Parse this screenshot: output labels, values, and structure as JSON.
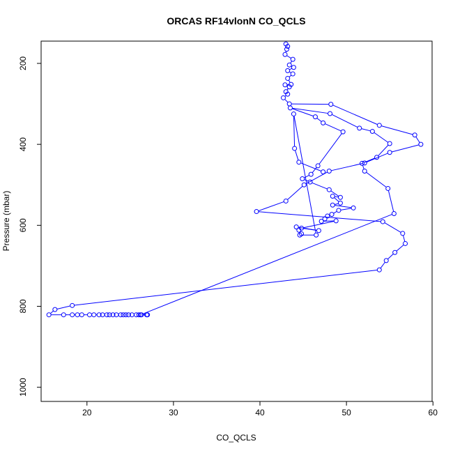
{
  "chart_data": {
    "type": "scatter",
    "title": "ORCAS RF14vlonN CO_QCLS",
    "xlabel": "CO_QCLS",
    "ylabel": "Pressure (mbar)",
    "xlim": [
      14.7,
      59.9
    ],
    "ylim": [
      1035,
      145
    ],
    "y_reversed": true,
    "grid": false,
    "line_color": "#0000ff",
    "marker": "open-circle",
    "connect_points": true,
    "x_ticks": [
      20,
      30,
      40,
      50,
      60
    ],
    "y_ticks": [
      200,
      400,
      600,
      800,
      1000
    ],
    "series": [
      {
        "points": [
          [
            43.0,
            152
          ],
          [
            43.2,
            158
          ],
          [
            43.1,
            165
          ],
          [
            42.9,
            178
          ],
          [
            43.8,
            190
          ],
          [
            43.4,
            204
          ],
          [
            43.9,
            210
          ],
          [
            43.2,
            218
          ],
          [
            43.8,
            226
          ],
          [
            43.2,
            237
          ],
          [
            43.6,
            252
          ],
          [
            42.9,
            253
          ],
          [
            43.4,
            258
          ],
          [
            43.0,
            270
          ],
          [
            43.2,
            276
          ],
          [
            42.7,
            285
          ],
          [
            43.4,
            300
          ],
          [
            48.2,
            301
          ],
          [
            53.8,
            353
          ],
          [
            57.9,
            377
          ],
          [
            58.6,
            400
          ],
          [
            55.0,
            420
          ],
          [
            52.1,
            446
          ],
          [
            48.0,
            466
          ],
          [
            45.1,
            500
          ],
          [
            43.0,
            540
          ],
          [
            39.6,
            566
          ],
          [
            54.2,
            591
          ],
          [
            56.5,
            620
          ],
          [
            56.8,
            645
          ],
          [
            55.6,
            667
          ],
          [
            54.6,
            687
          ],
          [
            53.8,
            710
          ],
          [
            18.3,
            798
          ],
          [
            16.3,
            808
          ],
          [
            15.6,
            821
          ],
          [
            17.3,
            821
          ],
          [
            18.3,
            821
          ],
          [
            18.9,
            821
          ],
          [
            19.4,
            821
          ],
          [
            20.3,
            821
          ],
          [
            20.8,
            821
          ],
          [
            21.4,
            821
          ],
          [
            21.8,
            821
          ],
          [
            22.3,
            821
          ],
          [
            22.6,
            821
          ],
          [
            23.0,
            821
          ],
          [
            23.4,
            821
          ],
          [
            23.9,
            821
          ],
          [
            24.2,
            821
          ],
          [
            24.5,
            821
          ],
          [
            24.8,
            821
          ],
          [
            25.2,
            821
          ],
          [
            25.7,
            821
          ],
          [
            26.0,
            821
          ],
          [
            26.3,
            821
          ],
          [
            26.9,
            821
          ],
          [
            27.0,
            821
          ],
          [
            26.2,
            821
          ],
          [
            55.5,
            571
          ],
          [
            54.8,
            509
          ],
          [
            52.1,
            466
          ],
          [
            51.8,
            447
          ],
          [
            53.5,
            432
          ],
          [
            55.0,
            398
          ],
          [
            53.0,
            368
          ],
          [
            51.5,
            360
          ],
          [
            48.1,
            324
          ],
          [
            43.5,
            310
          ],
          [
            46.4,
            332
          ],
          [
            47.3,
            347
          ],
          [
            49.6,
            369
          ],
          [
            46.7,
            453
          ],
          [
            45.9,
            474
          ],
          [
            44.9,
            485
          ],
          [
            45.8,
            493
          ],
          [
            48.0,
            512
          ],
          [
            49.3,
            531
          ],
          [
            48.4,
            528
          ],
          [
            49.3,
            545
          ],
          [
            48.4,
            550
          ],
          [
            50.8,
            557
          ],
          [
            49.1,
            563
          ],
          [
            48.3,
            573
          ],
          [
            47.8,
            577
          ],
          [
            47.5,
            584
          ],
          [
            47.1,
            590
          ],
          [
            48.8,
            589
          ],
          [
            44.8,
            607
          ],
          [
            46.8,
            613
          ],
          [
            44.2,
            604
          ],
          [
            44.5,
            612
          ],
          [
            44.8,
            621
          ],
          [
            44.6,
            624
          ],
          [
            46.5,
            624
          ],
          [
            43.9,
            325
          ],
          [
            44.0,
            410
          ],
          [
            44.5,
            444
          ],
          [
            47.3,
            468
          ]
        ]
      }
    ]
  }
}
